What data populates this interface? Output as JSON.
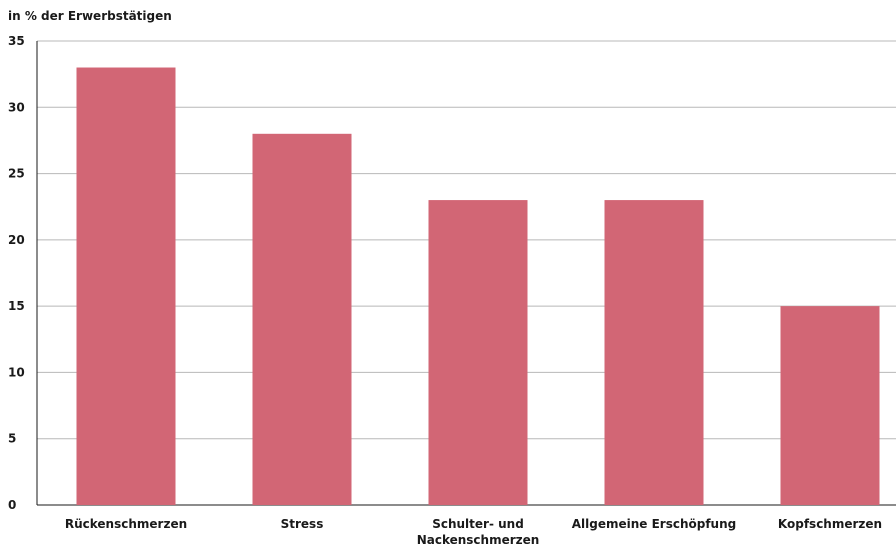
{
  "chart_data": {
    "type": "bar",
    "ylabel": "in % der Erwerbstätigen",
    "ylim": [
      0,
      35
    ],
    "yticks": [
      0,
      5,
      10,
      15,
      20,
      25,
      30,
      35
    ],
    "grid": true,
    "bar_color": "#d26675",
    "categories": [
      [
        "Rückenschmerzen"
      ],
      [
        "Stress"
      ],
      [
        "Schulter- und",
        "Nackenschmerzen"
      ],
      [
        "Allgemeine Erschöpfung"
      ],
      [
        "Kopfschmerzen"
      ]
    ],
    "values": [
      33,
      28,
      23,
      23,
      15
    ]
  }
}
